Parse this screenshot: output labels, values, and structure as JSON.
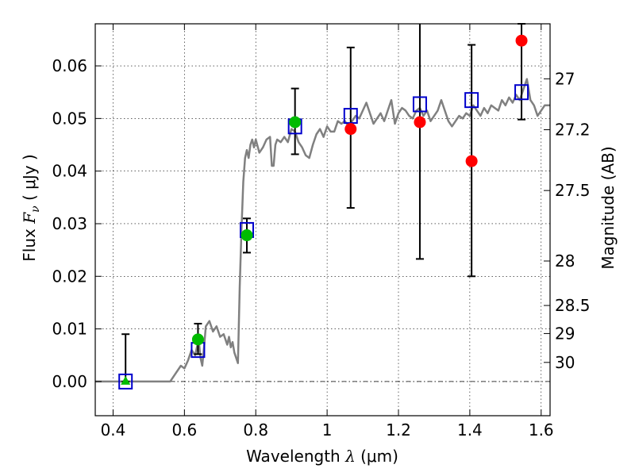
{
  "chart_data": {
    "type": "scatter",
    "title": "",
    "xlabel": {
      "prefix": "Wavelength  ",
      "symbol": "λ",
      "unit": " (μm)"
    },
    "ylabel": {
      "prefix": "Flux  ",
      "symbol": "F",
      "subscript": "ν",
      "unit": "  ( μJy )"
    },
    "y2label": "Magnitude (AB)",
    "xlim": [
      0.35,
      1.625
    ],
    "ylim": [
      -0.0065,
      0.068
    ],
    "grid": true,
    "x_ticks": [
      {
        "value": 0.4,
        "label": "0.4"
      },
      {
        "value": 0.6,
        "label": "0.6"
      },
      {
        "value": 0.8,
        "label": "0.8"
      },
      {
        "value": 1.0,
        "label": "1"
      },
      {
        "value": 1.2,
        "label": "1.2"
      },
      {
        "value": 1.4,
        "label": "1.4"
      },
      {
        "value": 1.6,
        "label": "1.6"
      }
    ],
    "y_ticks": [
      {
        "value": 0.0,
        "label": "0.00"
      },
      {
        "value": 0.01,
        "label": "0.01"
      },
      {
        "value": 0.02,
        "label": "0.02"
      },
      {
        "value": 0.03,
        "label": "0.03"
      },
      {
        "value": 0.04,
        "label": "0.04"
      },
      {
        "value": 0.05,
        "label": "0.05"
      },
      {
        "value": 0.06,
        "label": "0.06"
      }
    ],
    "mag_ticks": [
      {
        "value": 27.0,
        "label": "27"
      },
      {
        "value": 27.2,
        "label": "27.2"
      },
      {
        "value": 27.5,
        "label": "27.5"
      },
      {
        "value": 28.0,
        "label": "28"
      },
      {
        "value": 28.5,
        "label": "28.5"
      },
      {
        "value": 29.0,
        "label": "29"
      },
      {
        "value": 30.0,
        "label": "30"
      }
    ],
    "template_spectrum": {
      "color": "#808080",
      "x": [
        0.35,
        0.56,
        0.575,
        0.59,
        0.6,
        0.61,
        0.62,
        0.63,
        0.64,
        0.645,
        0.65,
        0.655,
        0.66,
        0.67,
        0.68,
        0.69,
        0.7,
        0.71,
        0.72,
        0.725,
        0.73,
        0.735,
        0.74,
        0.745,
        0.75,
        0.755,
        0.76,
        0.765,
        0.77,
        0.775,
        0.78,
        0.785,
        0.79,
        0.795,
        0.8,
        0.81,
        0.82,
        0.83,
        0.84,
        0.845,
        0.85,
        0.855,
        0.86,
        0.87,
        0.88,
        0.89,
        0.9,
        0.91,
        0.92,
        0.93,
        0.94,
        0.95,
        0.96,
        0.97,
        0.98,
        0.99,
        1.0,
        1.01,
        1.02,
        1.03,
        1.04,
        1.05,
        1.06,
        1.07,
        1.08,
        1.09,
        1.1,
        1.11,
        1.12,
        1.13,
        1.14,
        1.15,
        1.16,
        1.17,
        1.18,
        1.19,
        1.2,
        1.21,
        1.22,
        1.23,
        1.24,
        1.25,
        1.26,
        1.27,
        1.28,
        1.29,
        1.3,
        1.31,
        1.32,
        1.33,
        1.34,
        1.35,
        1.36,
        1.37,
        1.38,
        1.39,
        1.4,
        1.41,
        1.42,
        1.43,
        1.44,
        1.45,
        1.46,
        1.47,
        1.48,
        1.49,
        1.5,
        1.51,
        1.52,
        1.53,
        1.54,
        1.55,
        1.56,
        1.57,
        1.58,
        1.59,
        1.6,
        1.61,
        1.625
      ],
      "y": [
        0.0,
        0.0,
        0.0015,
        0.003,
        0.0025,
        0.004,
        0.006,
        0.005,
        0.008,
        0.0045,
        0.003,
        0.0065,
        0.0105,
        0.0115,
        0.0095,
        0.0105,
        0.0085,
        0.009,
        0.007,
        0.0085,
        0.0065,
        0.0075,
        0.0055,
        0.0045,
        0.0035,
        0.018,
        0.029,
        0.038,
        0.0425,
        0.044,
        0.0425,
        0.045,
        0.046,
        0.0445,
        0.046,
        0.0435,
        0.0445,
        0.046,
        0.0465,
        0.041,
        0.041,
        0.045,
        0.046,
        0.0455,
        0.0465,
        0.0455,
        0.048,
        0.0475,
        0.0455,
        0.0445,
        0.043,
        0.0425,
        0.045,
        0.047,
        0.048,
        0.0465,
        0.0485,
        0.0475,
        0.0475,
        0.0495,
        0.049,
        0.0495,
        0.0485,
        0.0495,
        0.0505,
        0.05,
        0.0515,
        0.053,
        0.051,
        0.049,
        0.05,
        0.051,
        0.0495,
        0.0515,
        0.0535,
        0.049,
        0.051,
        0.052,
        0.0515,
        0.0505,
        0.05,
        0.0515,
        0.052,
        0.0505,
        0.0515,
        0.0495,
        0.0505,
        0.0515,
        0.0535,
        0.0515,
        0.0495,
        0.0485,
        0.0495,
        0.0505,
        0.05,
        0.051,
        0.0505,
        0.0525,
        0.0515,
        0.0505,
        0.052,
        0.051,
        0.0525,
        0.052,
        0.0515,
        0.0535,
        0.0525,
        0.054,
        0.053,
        0.0545,
        0.0535,
        0.0555,
        0.0575,
        0.0535,
        0.0525,
        0.0505,
        0.0515,
        0.0525,
        0.0525
      ]
    },
    "series": [
      {
        "marker": "square",
        "color": "#0000cc",
        "points": [
          {
            "x": 0.435,
            "y": 0.0
          },
          {
            "x": 0.638,
            "y": 0.006
          },
          {
            "x": 0.775,
            "y": 0.0288
          },
          {
            "x": 0.91,
            "y": 0.0485
          },
          {
            "x": 1.066,
            "y": 0.0505
          },
          {
            "x": 1.26,
            "y": 0.0527
          },
          {
            "x": 1.405,
            "y": 0.0535
          },
          {
            "x": 1.545,
            "y": 0.055
          }
        ]
      },
      {
        "marker": "circle",
        "color": "#00bb00",
        "points": [
          {
            "x": 0.638,
            "y": 0.008,
            "yerr_low": 0.0028,
            "yerr_high": 0.003
          },
          {
            "x": 0.775,
            "y": 0.0278,
            "yerr_low": 0.0033,
            "yerr_high": 0.0032
          },
          {
            "x": 0.91,
            "y": 0.0493,
            "yerr_low": 0.0061,
            "yerr_high": 0.0064
          }
        ]
      },
      {
        "marker": "triangle",
        "color": "#00bb00",
        "points": [
          {
            "x": 0.435,
            "y": 0.0,
            "yerr_low": 0.0,
            "yerr_high": 0.009
          }
        ]
      },
      {
        "marker": "circle",
        "color": "#ff0000",
        "points": [
          {
            "x": 1.066,
            "y": 0.048,
            "yerr_low": 0.015,
            "yerr_high": 0.0155
          },
          {
            "x": 1.26,
            "y": 0.0493,
            "yerr_low": 0.026,
            "yerr_high": 0.0187
          },
          {
            "x": 1.405,
            "y": 0.0419,
            "yerr_low": 0.0219,
            "yerr_high": 0.0221
          },
          {
            "x": 1.545,
            "y": 0.0648,
            "yerr_low": 0.015,
            "yerr_high": 0.0032
          }
        ]
      }
    ]
  }
}
